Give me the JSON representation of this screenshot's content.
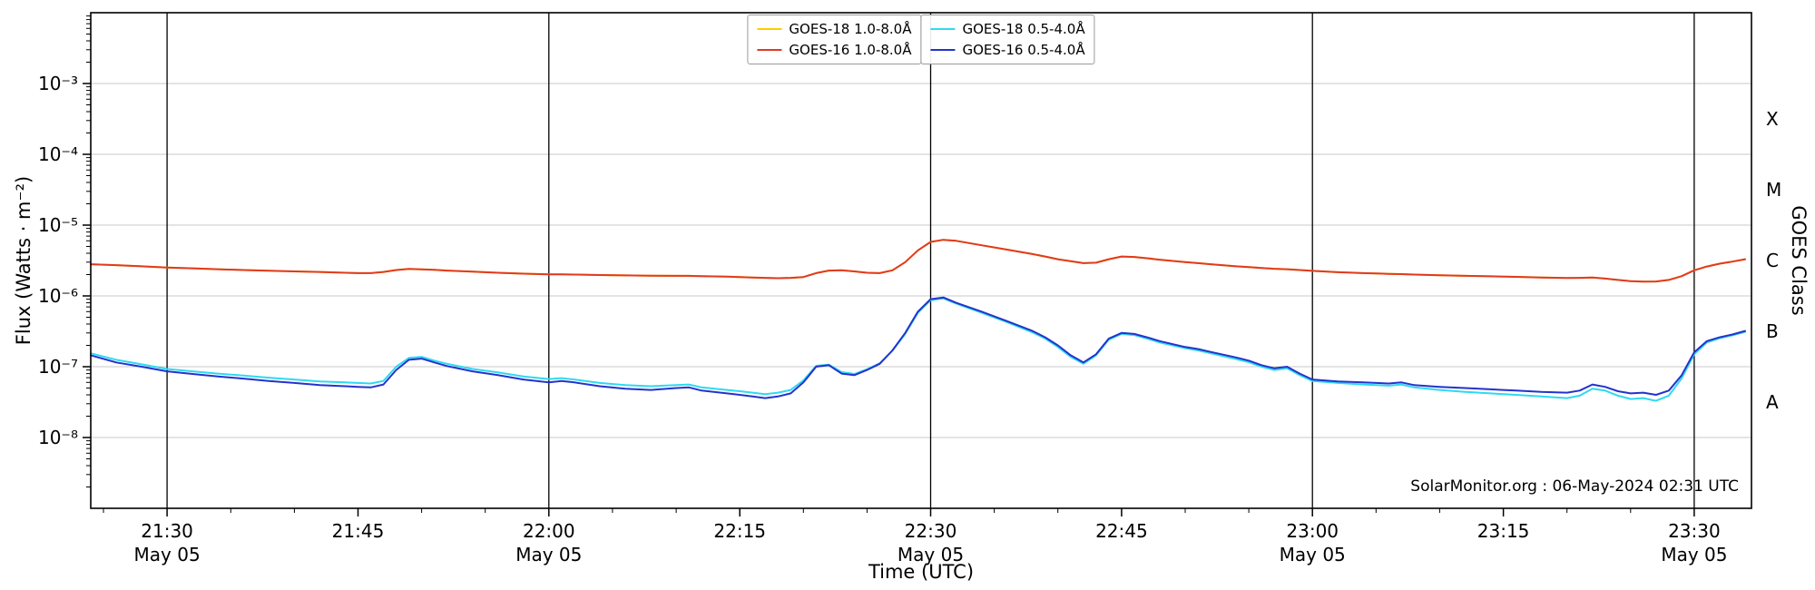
{
  "figure": {
    "watermark": "SolarMonitor.org : 06-May-2024 02:31 UTC"
  },
  "axes": {
    "x_label": "Time (UTC)",
    "y_label": "Flux (Watts · m⁻²)",
    "right_label": "GOES Class",
    "x_ticks": [
      {
        "t": 30,
        "label": "21:30",
        "sub": "May 05",
        "line": true
      },
      {
        "t": 45,
        "label": "21:45",
        "line": false
      },
      {
        "t": 60,
        "label": "22:00",
        "sub": "May 05",
        "line": true
      },
      {
        "t": 75,
        "label": "22:15",
        "line": false
      },
      {
        "t": 90,
        "label": "22:30",
        "sub": "May 05",
        "line": true
      },
      {
        "t": 105,
        "label": "22:45",
        "line": false
      },
      {
        "t": 120,
        "label": "23:00",
        "sub": "May 05",
        "line": true
      },
      {
        "t": 135,
        "label": "23:15",
        "line": false
      },
      {
        "t": 150,
        "label": "23:30",
        "sub": "May 05",
        "line": true
      }
    ],
    "y_ticks": [
      {
        "v": 0.001,
        "label": "10⁻³"
      },
      {
        "v": 0.0001,
        "label": "10⁻⁴"
      },
      {
        "v": 1e-05,
        "label": "10⁻⁵"
      },
      {
        "v": 1e-06,
        "label": "10⁻⁶"
      },
      {
        "v": 1e-07,
        "label": "10⁻⁷"
      },
      {
        "v": 1e-08,
        "label": "10⁻⁸"
      }
    ],
    "right_ticks": [
      {
        "v": 0.000316,
        "label": "X"
      },
      {
        "v": 3.16e-05,
        "label": "M"
      },
      {
        "v": 3.16e-06,
        "label": "C"
      },
      {
        "v": 3.16e-07,
        "label": "B"
      },
      {
        "v": 3.16e-08,
        "label": "A"
      }
    ]
  },
  "chart_data": {
    "type": "line",
    "x_unit": "minutes after 21:00 UTC on May 05",
    "xlim": [
      24,
      154.5
    ],
    "ylim": [
      1e-09,
      0.01
    ],
    "y_scale": "log",
    "grid": "horizontal decades + vertical lines at half-hours",
    "grid_color": "#c8c8c8",
    "legend_position": "top center",
    "x": [
      24,
      26,
      28,
      30,
      32,
      34,
      36,
      38,
      40,
      42,
      44,
      45,
      46,
      47,
      48,
      49,
      50,
      51,
      52,
      54,
      56,
      58,
      60,
      61,
      62,
      64,
      66,
      68,
      70,
      71,
      72,
      74,
      75,
      76,
      77,
      78,
      79,
      80,
      81,
      82,
      83,
      84,
      85,
      86,
      87,
      88,
      89,
      90,
      91,
      92,
      94,
      96,
      98,
      99,
      100,
      101,
      102,
      103,
      104,
      105,
      106,
      107,
      108,
      110,
      111,
      112,
      114,
      115,
      116,
      117,
      118,
      119,
      120,
      122,
      124,
      126,
      127,
      128,
      130,
      132,
      134,
      136,
      138,
      140,
      141,
      142,
      143,
      144,
      145,
      146,
      147,
      148,
      149,
      150,
      151,
      152,
      153,
      154
    ],
    "series": [
      {
        "key": "goes18-long",
        "name": "GOES-18 1.0-8.0Å",
        "color": "#ffcc00",
        "values": [
          2.8e-06,
          2.72e-06,
          2.62e-06,
          2.52e-06,
          2.45e-06,
          2.38e-06,
          2.32e-06,
          2.27e-06,
          2.22e-06,
          2.18e-06,
          2.12e-06,
          2.1e-06,
          2.1e-06,
          2.18e-06,
          2.32e-06,
          2.4e-06,
          2.37e-06,
          2.33e-06,
          2.28e-06,
          2.2e-06,
          2.12e-06,
          2.06e-06,
          2.02e-06,
          2.02e-06,
          2e-06,
          1.97e-06,
          1.95e-06,
          1.93e-06,
          1.92e-06,
          1.92e-06,
          1.9e-06,
          1.87e-06,
          1.85e-06,
          1.82e-06,
          1.8e-06,
          1.78e-06,
          1.8e-06,
          1.85e-06,
          2.1e-06,
          2.28e-06,
          2.3e-06,
          2.22e-06,
          2.12e-06,
          2.1e-06,
          2.3e-06,
          3e-06,
          4.4e-06,
          5.8e-06,
          6.2e-06,
          6e-06,
          5.2e-06,
          4.5e-06,
          3.9e-06,
          3.6e-06,
          3.3e-06,
          3.1e-06,
          2.9e-06,
          2.95e-06,
          3.3e-06,
          3.6e-06,
          3.55e-06,
          3.4e-06,
          3.25e-06,
          3e-06,
          2.9e-06,
          2.8e-06,
          2.62e-06,
          2.55e-06,
          2.48e-06,
          2.42e-06,
          2.38e-06,
          2.32e-06,
          2.26e-06,
          2.16e-06,
          2.1e-06,
          2.05e-06,
          2.03e-06,
          2e-06,
          1.96e-06,
          1.92e-06,
          1.89e-06,
          1.86e-06,
          1.82e-06,
          1.79e-06,
          1.8e-06,
          1.82e-06,
          1.76e-06,
          1.68e-06,
          1.62e-06,
          1.59e-06,
          1.6e-06,
          1.68e-06,
          1.9e-06,
          2.3e-06,
          2.6e-06,
          2.85e-06,
          3.05e-06,
          3.3e-06
        ]
      },
      {
        "key": "goes16-long",
        "name": "GOES-16 1.0-8.0Å",
        "color": "#e03a20",
        "values": [
          2.8e-06,
          2.72e-06,
          2.62e-06,
          2.52e-06,
          2.45e-06,
          2.38e-06,
          2.32e-06,
          2.27e-06,
          2.22e-06,
          2.18e-06,
          2.12e-06,
          2.1e-06,
          2.1e-06,
          2.18e-06,
          2.32e-06,
          2.4e-06,
          2.37e-06,
          2.33e-06,
          2.28e-06,
          2.2e-06,
          2.12e-06,
          2.06e-06,
          2.02e-06,
          2.02e-06,
          2e-06,
          1.97e-06,
          1.95e-06,
          1.93e-06,
          1.92e-06,
          1.92e-06,
          1.9e-06,
          1.87e-06,
          1.85e-06,
          1.82e-06,
          1.8e-06,
          1.78e-06,
          1.8e-06,
          1.85e-06,
          2.1e-06,
          2.28e-06,
          2.3e-06,
          2.22e-06,
          2.12e-06,
          2.1e-06,
          2.3e-06,
          3e-06,
          4.4e-06,
          5.8e-06,
          6.2e-06,
          6e-06,
          5.2e-06,
          4.5e-06,
          3.9e-06,
          3.6e-06,
          3.3e-06,
          3.1e-06,
          2.9e-06,
          2.95e-06,
          3.3e-06,
          3.6e-06,
          3.55e-06,
          3.4e-06,
          3.25e-06,
          3e-06,
          2.9e-06,
          2.8e-06,
          2.62e-06,
          2.55e-06,
          2.48e-06,
          2.42e-06,
          2.38e-06,
          2.32e-06,
          2.26e-06,
          2.16e-06,
          2.1e-06,
          2.05e-06,
          2.03e-06,
          2e-06,
          1.96e-06,
          1.92e-06,
          1.89e-06,
          1.86e-06,
          1.82e-06,
          1.79e-06,
          1.8e-06,
          1.82e-06,
          1.76e-06,
          1.68e-06,
          1.62e-06,
          1.59e-06,
          1.6e-06,
          1.68e-06,
          1.9e-06,
          2.3e-06,
          2.6e-06,
          2.85e-06,
          3.05e-06,
          3.3e-06
        ]
      },
      {
        "key": "goes18-short",
        "name": "GOES-18 0.5-4.0Å",
        "color": "#2fd9f2",
        "values": [
          1.55e-07,
          1.25e-07,
          1.08e-07,
          9.3e-08,
          8.6e-08,
          8e-08,
          7.5e-08,
          7e-08,
          6.6e-08,
          6.2e-08,
          6e-08,
          5.9e-08,
          5.8e-08,
          6.3e-08,
          1e-07,
          1.33e-07,
          1.38e-07,
          1.22e-07,
          1.1e-07,
          9.3e-08,
          8.3e-08,
          7.3e-08,
          6.7e-08,
          6.9e-08,
          6.6e-08,
          5.9e-08,
          5.5e-08,
          5.3e-08,
          5.5e-08,
          5.6e-08,
          5.1e-08,
          4.7e-08,
          4.5e-08,
          4.3e-08,
          4.1e-08,
          4.3e-08,
          4.7e-08,
          6.4e-08,
          1.03e-07,
          1.07e-07,
          8.4e-08,
          7.9e-08,
          9.2e-08,
          1.12e-07,
          1.68e-07,
          2.9e-07,
          5.8e-07,
          8.7e-07,
          9.2e-07,
          7.8e-07,
          5.8e-07,
          4.25e-07,
          3.05e-07,
          2.5e-07,
          1.9e-07,
          1.38e-07,
          1.1e-07,
          1.45e-07,
          2.4e-07,
          2.9e-07,
          2.8e-07,
          2.5e-07,
          2.2e-07,
          1.82e-07,
          1.7e-07,
          1.55e-07,
          1.28e-07,
          1.16e-07,
          1e-07,
          9e-08,
          9.5e-08,
          7.6e-08,
          6.3e-08,
          5.9e-08,
          5.6e-08,
          5.4e-08,
          5.6e-08,
          5.1e-08,
          4.7e-08,
          4.4e-08,
          4.2e-08,
          4e-08,
          3.8e-08,
          3.6e-08,
          3.9e-08,
          4.9e-08,
          4.6e-08,
          3.9e-08,
          3.5e-08,
          3.6e-08,
          3.3e-08,
          3.9e-08,
          6.8e-08,
          1.5e-07,
          2.2e-07,
          2.52e-07,
          2.78e-07,
          3.1e-07
        ]
      },
      {
        "key": "goes16-short",
        "name": "GOES-16 0.5-4.0Å",
        "color": "#2333cc",
        "values": [
          1.45e-07,
          1.15e-07,
          1e-07,
          8.6e-08,
          7.9e-08,
          7.3e-08,
          6.8e-08,
          6.3e-08,
          5.9e-08,
          5.5e-08,
          5.3e-08,
          5.2e-08,
          5.1e-08,
          5.6e-08,
          9e-08,
          1.25e-07,
          1.3e-07,
          1.15e-07,
          1.02e-07,
          8.6e-08,
          7.6e-08,
          6.6e-08,
          6e-08,
          6.3e-08,
          6e-08,
          5.3e-08,
          4.9e-08,
          4.7e-08,
          5e-08,
          5.1e-08,
          4.6e-08,
          4.2e-08,
          4e-08,
          3.8e-08,
          3.6e-08,
          3.8e-08,
          4.2e-08,
          6e-08,
          1e-07,
          1.05e-07,
          8e-08,
          7.6e-08,
          9e-08,
          1.1e-07,
          1.7e-07,
          3e-07,
          6e-07,
          9e-07,
          9.5e-07,
          8e-07,
          6e-07,
          4.4e-07,
          3.2e-07,
          2.6e-07,
          2e-07,
          1.45e-07,
          1.15e-07,
          1.5e-07,
          2.5e-07,
          3e-07,
          2.9e-07,
          2.6e-07,
          2.3e-07,
          1.9e-07,
          1.78e-07,
          1.62e-07,
          1.35e-07,
          1.22e-07,
          1.05e-07,
          9.5e-08,
          1e-07,
          8e-08,
          6.6e-08,
          6.2e-08,
          6e-08,
          5.8e-08,
          6e-08,
          5.5e-08,
          5.2e-08,
          5e-08,
          4.8e-08,
          4.6e-08,
          4.4e-08,
          4.3e-08,
          4.6e-08,
          5.6e-08,
          5.2e-08,
          4.5e-08,
          4.2e-08,
          4.3e-08,
          4e-08,
          4.6e-08,
          7.5e-08,
          1.6e-07,
          2.3e-07,
          2.6e-07,
          2.85e-07,
          3.2e-07
        ]
      }
    ]
  }
}
